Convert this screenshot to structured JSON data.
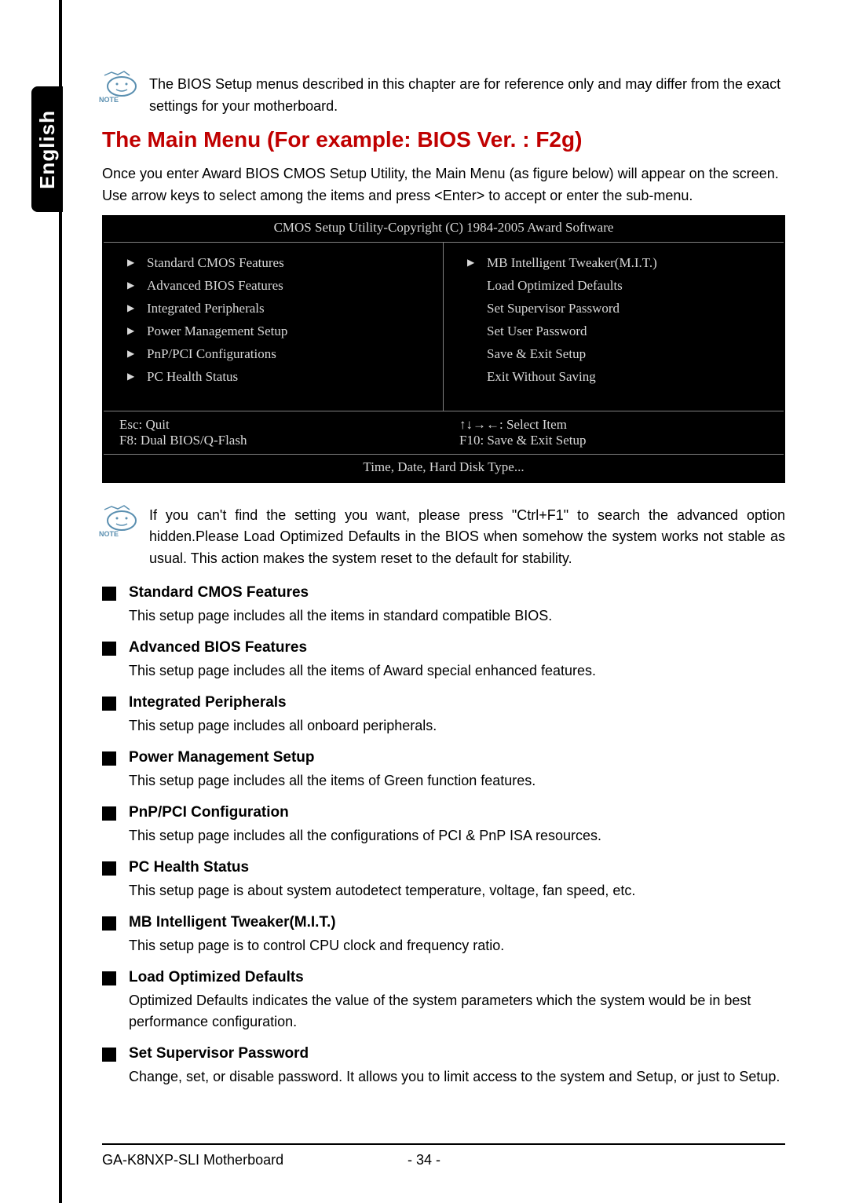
{
  "language_tab": "English",
  "note_label": "NOTE",
  "note1_text": "The BIOS Setup menus described in this chapter are for reference only and may differ from the exact settings for your motherboard.",
  "main_heading": "The Main Menu (For example: BIOS Ver. : F2g)",
  "intro_text": "Once you enter Award BIOS CMOS Setup Utility, the Main Menu (as figure below) will appear on the screen.  Use arrow keys to select among the items and press <Enter> to accept or enter the sub-menu.",
  "bios": {
    "header": "CMOS Setup Utility-Copyright (C) 1984-2005 Award Software",
    "left_items": [
      "Standard CMOS Features",
      "Advanced BIOS Features",
      "Integrated Peripherals",
      "Power Management Setup",
      "PnP/PCI Configurations",
      "PC Health Status"
    ],
    "right_items": [
      {
        "text": "MB Intelligent Tweaker(M.I.T.)",
        "tri": true
      },
      {
        "text": "Load Optimized Defaults",
        "tri": false
      },
      {
        "text": "Set Supervisor Password",
        "tri": false
      },
      {
        "text": "Set User Password",
        "tri": false
      },
      {
        "text": "Save & Exit Setup",
        "tri": false
      },
      {
        "text": "Exit Without Saving",
        "tri": false
      }
    ],
    "footer_left_1": "Esc: Quit",
    "footer_right_1": "↑↓→←: Select Item",
    "footer_left_2": "F8: Dual BIOS/Q-Flash",
    "footer_right_2": "F10: Save & Exit Setup",
    "footer_bottom": "Time, Date, Hard Disk Type..."
  },
  "note2_text": "If you can't find the setting you want, please press \"Ctrl+F1\" to search the advanced option hidden.Please Load Optimized Defaults in the BIOS when somehow the system works not stable as usual. This action makes the system reset to the default for stability.",
  "features": [
    {
      "title": "Standard CMOS Features",
      "desc": "This setup page includes all the items in standard compatible BIOS."
    },
    {
      "title": "Advanced BIOS Features",
      "desc": "This setup page includes all the items of Award special enhanced features."
    },
    {
      "title": "Integrated Peripherals",
      "desc": "This setup page includes all onboard peripherals."
    },
    {
      "title": "Power Management Setup",
      "desc": "This setup page includes all the items of Green function features."
    },
    {
      "title": "PnP/PCI Configuration",
      "desc": "This setup page includes all the configurations of PCI & PnP ISA resources."
    },
    {
      "title": "PC Health Status",
      "desc": "This setup page is about system autodetect temperature, voltage, fan speed, etc."
    },
    {
      "title": "MB Intelligent Tweaker(M.I.T.)",
      "desc": "This setup page is to control CPU clock and frequency ratio."
    },
    {
      "title": "Load Optimized Defaults",
      "desc": "Optimized Defaults indicates the value of the system parameters which the system would be in best performance configuration."
    },
    {
      "title": "Set Supervisor Password",
      "desc": "Change, set, or disable password. It allows you to limit access to the system and Setup, or just to Setup."
    }
  ],
  "footer_text": "GA-K8NXP-SLI Motherboard",
  "page_num": "- 34 -",
  "colors": {
    "heading": "#c00000",
    "note_icon": "#5a8fb0",
    "bios_bg": "#000000",
    "bios_text": "#d8d8d8"
  }
}
